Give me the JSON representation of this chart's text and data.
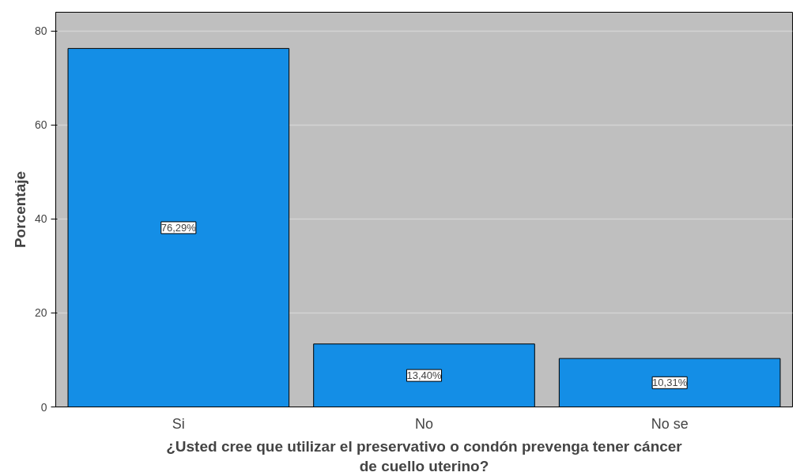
{
  "chart_data": {
    "type": "bar",
    "xlabel": "¿Usted cree que utilizar el preservativo o condón prevenga tener cáncer de cuello uterino?",
    "ylabel": "Porcentaje",
    "categories": [
      "Si",
      "No",
      "No se"
    ],
    "values": [
      76.29,
      13.4,
      10.31
    ],
    "value_labels": [
      "76,29%",
      "13,40%",
      "10,31%"
    ],
    "color": "#148ee6",
    "ylim": [
      0,
      84
    ],
    "yticks": [
      0,
      20,
      40,
      60,
      80
    ],
    "grid": "y"
  }
}
